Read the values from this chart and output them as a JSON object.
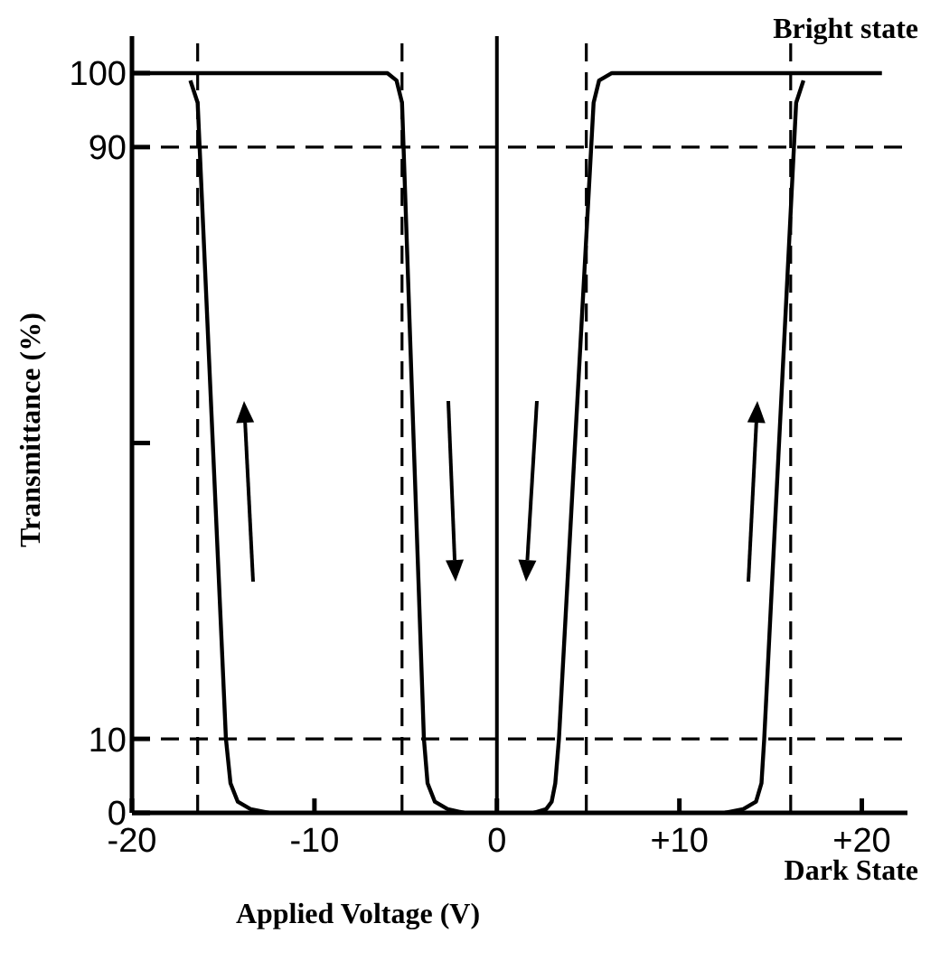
{
  "chart_data": {
    "type": "line",
    "xlabel": "Applied Voltage (V)",
    "ylabel": "Transmittance (%)",
    "annotations": [
      "Bright state",
      "Dark State"
    ],
    "xlim": [
      -20,
      22.5
    ],
    "xticks": [
      -20,
      -10,
      0,
      {
        "value": 10,
        "label": "+10"
      },
      {
        "value": 20,
        "label": "+20"
      }
    ],
    "ylim": [
      0,
      105
    ],
    "yticks": [
      0,
      10,
      {
        "value": 50,
        "label": null
      },
      90,
      100
    ],
    "line_style": "solid",
    "series": [
      {
        "color": "#000000",
        "x": [
          -16.8,
          -16.4,
          -14.85,
          -14.6,
          -14.2,
          -13.5,
          -12.5
        ],
        "values": [
          99,
          96,
          10,
          4,
          1.5,
          0.5,
          0
        ]
      },
      {
        "color": "#000000",
        "x": [
          -20,
          -6,
          -5.5,
          -5.2,
          -4.0,
          -3.8,
          -3.4,
          -2.7,
          -1.8
        ],
        "values": [
          100,
          100,
          99,
          96,
          10,
          4,
          1.5,
          0.5,
          0
        ]
      },
      {
        "color": "#000000",
        "x": [
          2.0,
          2.7,
          3.0,
          3.2,
          3.4,
          5.3,
          5.6,
          6.3,
          21.1
        ],
        "values": [
          0,
          0.5,
          1.5,
          4,
          10,
          96,
          99,
          100,
          100
        ]
      },
      {
        "color": "#000000",
        "x": [
          12.5,
          13.5,
          14.2,
          14.5,
          14.65,
          16.4,
          16.8
        ],
        "values": [
          0,
          0.5,
          1.5,
          4,
          10,
          96,
          99
        ]
      }
    ],
    "ref_lines": [
      {
        "axis": "x",
        "value": 0,
        "line_style": "solid",
        "color": "#000000"
      },
      {
        "axis": "y",
        "value": 90,
        "line_style": "dashed",
        "color": "#000000"
      },
      {
        "axis": "y",
        "value": 10,
        "line_style": "dashed",
        "color": "#000000"
      },
      {
        "axis": "x",
        "value": -16.4,
        "line_style": "dashed",
        "color": "#000000"
      },
      {
        "axis": "x",
        "value": -5.2,
        "line_style": "dashed",
        "color": "#000000"
      },
      {
        "axis": "x",
        "value": 4.9,
        "line_style": "dashed",
        "color": "#000000"
      },
      {
        "axis": "x",
        "value": 16.1,
        "line_style": "dashed",
        "color": "#000000"
      }
    ]
  }
}
